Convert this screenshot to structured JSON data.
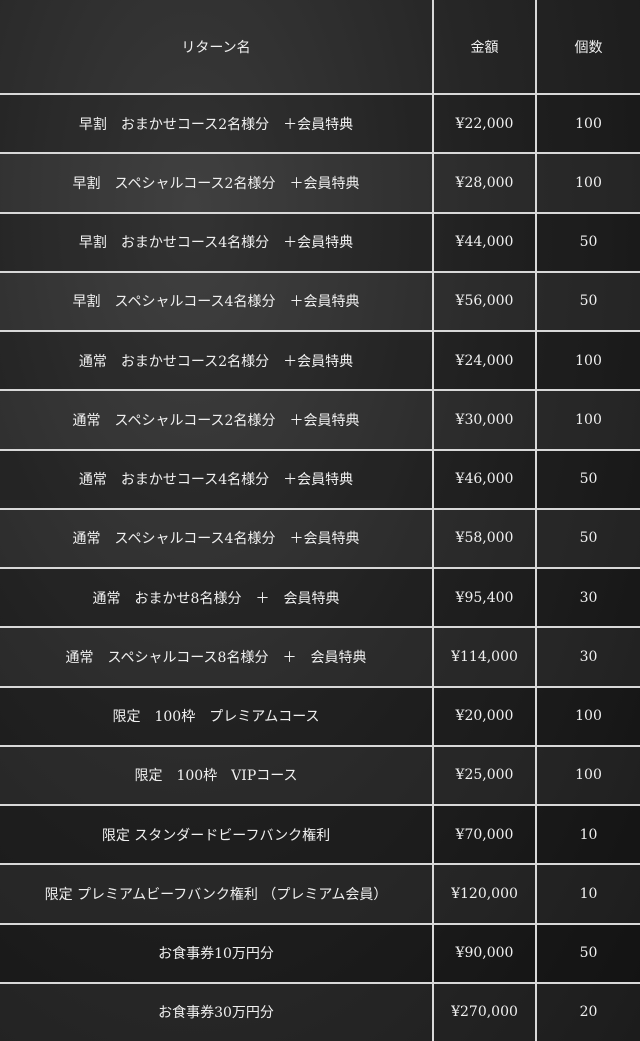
{
  "headers": {
    "name": "リターン名",
    "price": "金額",
    "quantity": "個数"
  },
  "rows": [
    {
      "name": "早割　おまかせコース2名様分　＋会員特典",
      "price": "¥22,000",
      "quantity": "100"
    },
    {
      "name": "早割　スペシャルコース2名様分　＋会員特典",
      "price": "¥28,000",
      "quantity": "100"
    },
    {
      "name": "早割　おまかせコース4名様分　＋会員特典",
      "price": "¥44,000",
      "quantity": "50"
    },
    {
      "name": "早割　スペシャルコース4名様分　＋会員特典",
      "price": "¥56,000",
      "quantity": "50"
    },
    {
      "name": "通常　おまかせコース2名様分　＋会員特典",
      "price": "¥24,000",
      "quantity": "100"
    },
    {
      "name": "通常　スペシャルコース2名様分　＋会員特典",
      "price": "¥30,000",
      "quantity": "100"
    },
    {
      "name": "通常　おまかせコース4名様分　＋会員特典",
      "price": "¥46,000",
      "quantity": "50"
    },
    {
      "name": "通常　スペシャルコース4名様分　＋会員特典",
      "price": "¥58,000",
      "quantity": "50"
    },
    {
      "name": "通常　おまかせ8名様分　＋　会員特典",
      "price": "¥95,400",
      "quantity": "30"
    },
    {
      "name": "通常　スペシャルコース8名様分　＋　会員特典",
      "price": "¥114,000",
      "quantity": "30"
    },
    {
      "name": "限定　100枠　プレミアムコース",
      "price": "¥20,000",
      "quantity": "100"
    },
    {
      "name": "限定　100枠　VIPコース",
      "price": "¥25,000",
      "quantity": "100"
    },
    {
      "name": "限定 スタンダードビーフバンク権利",
      "price": "¥70,000",
      "quantity": "10"
    },
    {
      "name": "限定 プレミアムビーフバンク権利 （プレミアム会員）",
      "price": "¥120,000",
      "quantity": "10"
    },
    {
      "name": "お食事券10万円分",
      "price": "¥90,000",
      "quantity": "50"
    },
    {
      "name": "お食事券30万円分",
      "price": "¥270,000",
      "quantity": "20"
    }
  ]
}
